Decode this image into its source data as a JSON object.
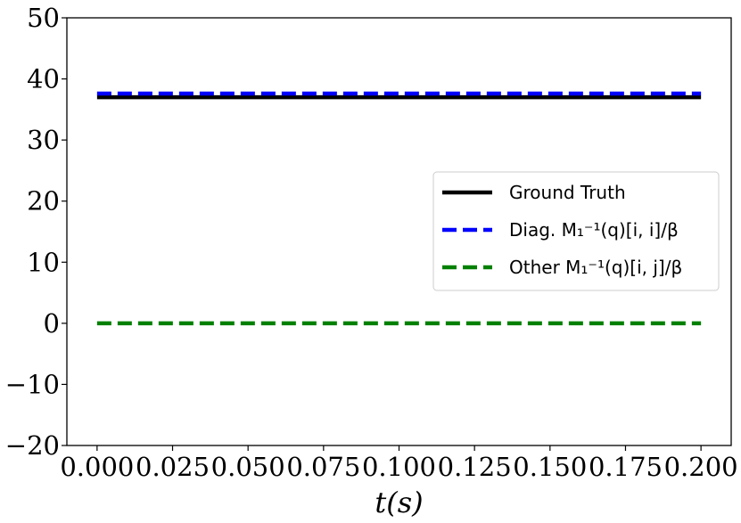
{
  "chart_data": {
    "type": "line",
    "title": "",
    "xlabel": "t(s)",
    "ylabel": "",
    "xlim": [
      -0.01,
      0.21
    ],
    "ylim": [
      -20,
      50
    ],
    "x_ticks": [
      0.0,
      0.025,
      0.05,
      0.075,
      0.1,
      0.125,
      0.15,
      0.175,
      0.2
    ],
    "x_tick_labels": [
      "0.000",
      "0.025",
      "0.050",
      "0.075",
      "0.100",
      "0.125",
      "0.150",
      "0.175",
      "0.200"
    ],
    "y_ticks": [
      -20,
      -10,
      0,
      10,
      20,
      30,
      40,
      50
    ],
    "y_tick_labels": [
      "−20",
      "−10",
      "0",
      "10",
      "20",
      "30",
      "40",
      "50"
    ],
    "grid": false,
    "legend_position": "center-right",
    "series": [
      {
        "name": "Ground Truth",
        "color": "#000000",
        "dash": "solid",
        "x": [
          0.0,
          0.2
        ],
        "y": [
          37.0,
          37.0
        ]
      },
      {
        "name": "Diag. M₁⁻¹(q)[i, i]/β",
        "color": "#0000ff",
        "dash": "dashed",
        "x": [
          0.0,
          0.2
        ],
        "y": [
          37.6,
          37.6
        ]
      },
      {
        "name": "Other M₁⁻¹(q)[i, j]/β",
        "color": "#008000",
        "dash": "dashed",
        "x": [
          0.0,
          0.2
        ],
        "y": [
          0.0,
          0.0
        ]
      }
    ]
  }
}
